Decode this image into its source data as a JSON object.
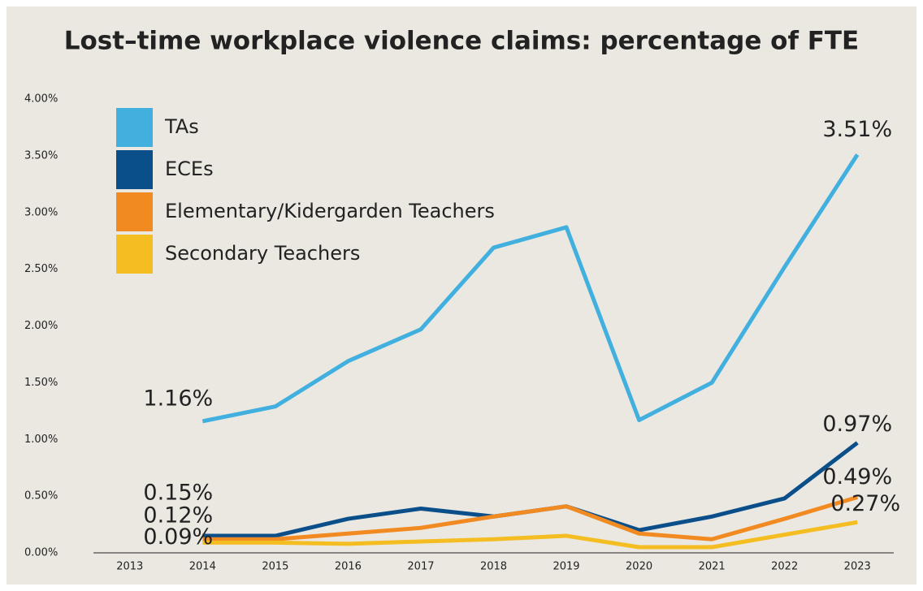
{
  "chart_data": {
    "type": "line",
    "title": "Lost–time workplace violence claims: percentage of FTE",
    "categories": [
      "2013",
      "2014",
      "2015",
      "2016",
      "2017",
      "2018",
      "2019",
      "2020",
      "2021",
      "2022",
      "2023"
    ],
    "series": [
      {
        "name": "TAs",
        "color": "#41b0df",
        "values": [
          null,
          1.16,
          1.29,
          1.69,
          1.97,
          2.69,
          2.87,
          1.17,
          1.5,
          2.52,
          3.51
        ],
        "value_labels": [
          null,
          "1.16%",
          null,
          null,
          null,
          null,
          null,
          null,
          null,
          null,
          "3.51%"
        ]
      },
      {
        "name": "ECEs",
        "color": "#0b4f8a",
        "values": [
          null,
          0.15,
          0.15,
          0.3,
          0.39,
          0.32,
          0.41,
          0.2,
          0.32,
          0.48,
          0.97
        ],
        "value_labels": [
          null,
          "0.15%",
          null,
          null,
          null,
          null,
          null,
          null,
          null,
          null,
          "0.97%"
        ]
      },
      {
        "name": "Elementary/Kidergarden Teachers",
        "color": "#f28a22",
        "values": [
          null,
          0.12,
          0.12,
          0.17,
          0.22,
          0.32,
          0.41,
          0.17,
          0.12,
          0.3,
          0.49
        ],
        "value_labels": [
          null,
          "0.12%",
          null,
          null,
          null,
          null,
          null,
          null,
          null,
          null,
          "0.49%"
        ]
      },
      {
        "name": "Secondary Teachers",
        "color": "#f4bd22",
        "values": [
          null,
          0.09,
          0.09,
          0.08,
          0.1,
          0.12,
          0.15,
          0.05,
          0.05,
          0.16,
          0.27
        ],
        "value_labels": [
          null,
          "0.09%",
          null,
          null,
          null,
          null,
          null,
          null,
          null,
          null,
          "0.27%"
        ]
      }
    ],
    "ylim": [
      0,
      4
    ],
    "yticks": [
      {
        "value": 0,
        "label": "0.00%"
      },
      {
        "value": 0.5,
        "label": "0.50%"
      },
      {
        "value": 1,
        "label": "1.00%"
      },
      {
        "value": 1.5,
        "label": "1.50%"
      },
      {
        "value": 2,
        "label": "2.00%"
      },
      {
        "value": 2.5,
        "label": "2.50%"
      },
      {
        "value": 3,
        "label": "3.00%"
      },
      {
        "value": 3.5,
        "label": "3.50%"
      },
      {
        "value": 4,
        "label": "4.00%"
      }
    ],
    "legend": "upper left"
  }
}
